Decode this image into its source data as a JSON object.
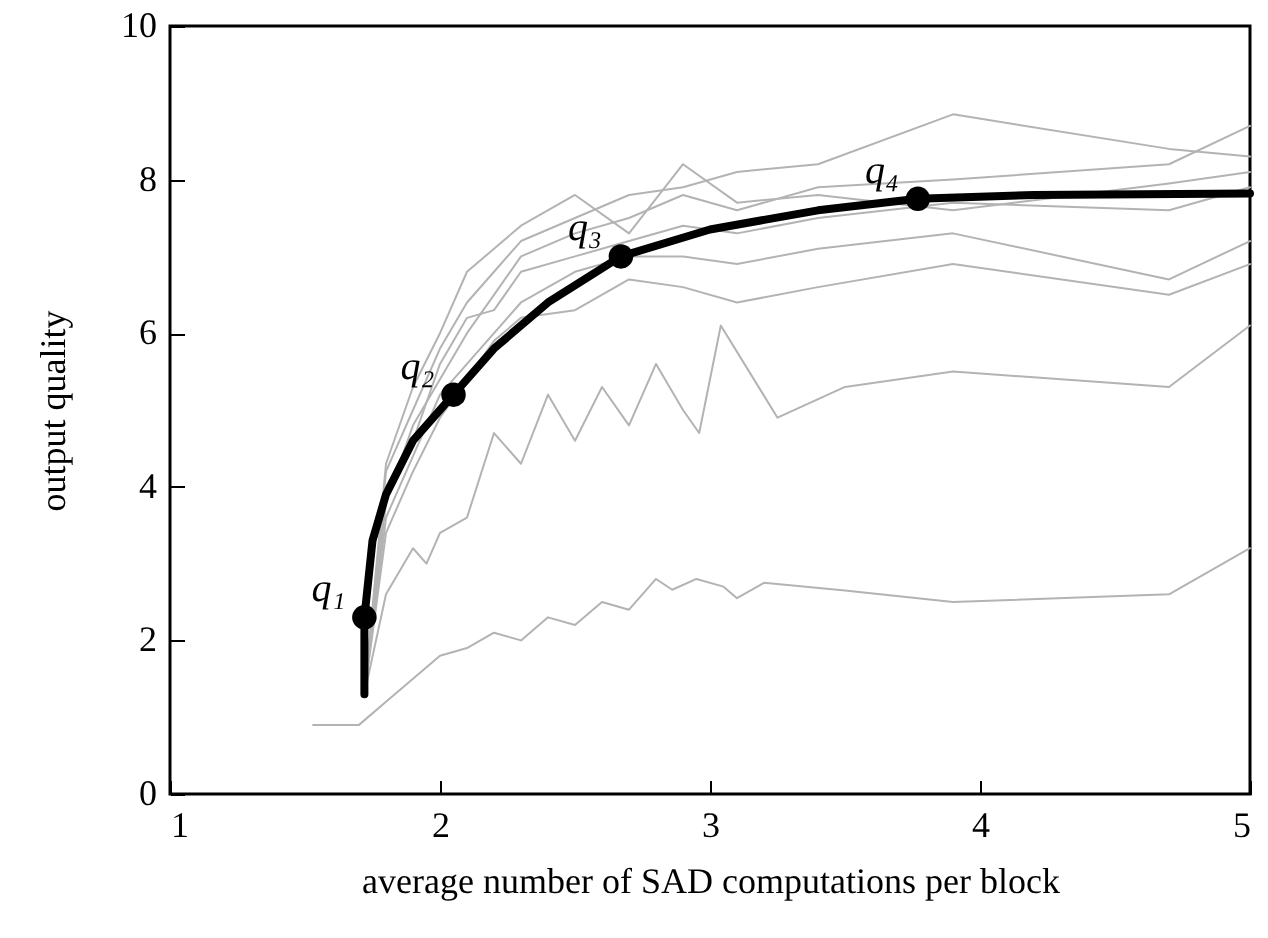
{
  "chart_data": {
    "type": "line",
    "xlabel": "average number of SAD computations per block",
    "ylabel": "output quality",
    "xlim": [
      1,
      5
    ],
    "xticks": [
      1,
      2,
      3,
      4,
      5
    ],
    "ylim": [
      0,
      10
    ],
    "yticks": [
      0,
      2,
      4,
      6,
      8,
      10
    ],
    "grid": false,
    "series": [
      {
        "color": "#b3b3b3",
        "x": [
          1.53,
          1.7,
          1.8,
          1.9,
          2.0,
          2.1,
          2.2,
          2.3,
          2.4,
          2.5,
          2.6,
          2.7,
          2.8,
          2.86,
          2.95,
          3.05,
          3.1,
          3.2,
          3.5,
          3.9,
          4.7,
          5.0
        ],
        "values": [
          0.9,
          0.9,
          1.2,
          1.5,
          1.8,
          1.9,
          2.1,
          2.0,
          2.3,
          2.2,
          2.5,
          2.4,
          2.8,
          2.66,
          2.8,
          2.7,
          2.55,
          2.75,
          2.65,
          2.5,
          2.6,
          3.2
        ]
      },
      {
        "color": "#b3b3b3",
        "x": [
          1.72,
          1.8,
          1.9,
          1.95,
          2.0,
          2.1,
          2.2,
          2.3,
          2.4,
          2.5,
          2.6,
          2.7,
          2.8,
          2.9,
          2.96,
          3.04,
          3.25,
          3.5,
          3.9,
          4.7,
          5.0
        ],
        "values": [
          1.3,
          2.6,
          3.2,
          3.0,
          3.4,
          3.6,
          4.7,
          4.3,
          5.2,
          4.6,
          5.3,
          4.8,
          5.6,
          5.0,
          4.7,
          6.1,
          4.9,
          5.3,
          5.5,
          5.3,
          6.1
        ]
      },
      {
        "color": "#b3b3b3",
        "x": [
          1.72,
          1.8,
          1.9,
          2.0,
          2.1,
          2.2,
          2.3,
          2.5,
          2.7,
          2.9,
          3.1,
          3.4,
          3.9,
          4.7,
          5.0
        ],
        "values": [
          1.3,
          4.2,
          5.0,
          5.8,
          6.4,
          6.8,
          7.2,
          7.5,
          7.8,
          7.9,
          8.1,
          8.2,
          8.85,
          8.4,
          8.3
        ]
      },
      {
        "color": "#b3b3b3",
        "x": [
          1.72,
          1.8,
          1.9,
          2.0,
          2.1,
          2.2,
          2.3,
          2.5,
          2.7,
          2.9,
          3.1,
          3.4,
          3.9,
          4.7,
          5.0
        ],
        "values": [
          1.3,
          3.8,
          4.8,
          5.4,
          6.0,
          6.5,
          7.0,
          7.3,
          7.5,
          7.8,
          7.6,
          7.9,
          8.0,
          8.2,
          8.7
        ]
      },
      {
        "color": "#b3b3b3",
        "x": [
          1.72,
          1.8,
          1.9,
          2.0,
          2.1,
          2.2,
          2.3,
          2.5,
          2.7,
          2.9,
          3.1,
          3.4,
          3.9,
          4.7,
          5.0
        ],
        "values": [
          1.3,
          4.0,
          4.6,
          5.6,
          6.2,
          6.3,
          6.8,
          7.0,
          7.2,
          7.4,
          7.3,
          7.5,
          7.7,
          7.6,
          7.9
        ]
      },
      {
        "color": "#b3b3b3",
        "x": [
          1.72,
          1.8,
          1.9,
          2.0,
          2.1,
          2.2,
          2.3,
          2.5,
          2.7,
          2.9,
          3.1,
          3.4,
          3.9,
          4.7,
          5.0
        ],
        "values": [
          1.3,
          3.6,
          4.4,
          5.2,
          5.6,
          6.0,
          6.4,
          6.8,
          7.0,
          7.0,
          6.9,
          7.1,
          7.3,
          6.7,
          7.2
        ]
      },
      {
        "color": "#b3b3b3",
        "x": [
          1.72,
          1.8,
          1.9,
          2.0,
          2.1,
          2.2,
          2.3,
          2.5,
          2.7,
          2.9,
          3.1,
          3.4,
          3.9,
          4.7,
          5.0
        ],
        "values": [
          1.3,
          3.4,
          4.2,
          4.9,
          5.4,
          5.9,
          6.2,
          6.3,
          6.7,
          6.6,
          6.4,
          6.6,
          6.9,
          6.5,
          6.9
        ]
      },
      {
        "color": "#b3b3b3",
        "x": [
          1.72,
          1.8,
          1.9,
          2.0,
          2.1,
          2.2,
          2.3,
          2.5,
          2.7,
          2.9,
          3.1,
          3.4,
          3.9,
          4.7,
          5.0
        ],
        "values": [
          1.3,
          4.3,
          5.3,
          6.0,
          6.8,
          7.1,
          7.4,
          7.8,
          7.3,
          8.2,
          7.7,
          7.8,
          7.6,
          7.95,
          8.1
        ]
      },
      {
        "color": "#000000",
        "x": [
          1.72,
          1.72,
          1.75,
          1.8,
          1.9,
          2.05,
          2.2,
          2.4,
          2.67,
          3.0,
          3.4,
          3.77,
          4.2,
          5.0
        ],
        "values": [
          1.3,
          2.3,
          3.3,
          3.9,
          4.6,
          5.2,
          5.8,
          6.4,
          7.0,
          7.35,
          7.6,
          7.75,
          7.8,
          7.82
        ]
      },
      {
        "type": "scatter",
        "color": "#000000",
        "marker": "circle",
        "x": [
          1.72,
          2.05,
          2.67,
          3.77
        ],
        "values": [
          2.3,
          5.2,
          7.0,
          7.75
        ]
      }
    ],
    "annotations": [
      {
        "text": "q₁",
        "x": 1.72,
        "y": 2.3
      },
      {
        "text": "q₂",
        "x": 2.05,
        "y": 5.2
      },
      {
        "text": "q₃",
        "x": 2.67,
        "y": 7.0
      },
      {
        "text": "q₄",
        "x": 3.77,
        "y": 7.75
      }
    ]
  }
}
